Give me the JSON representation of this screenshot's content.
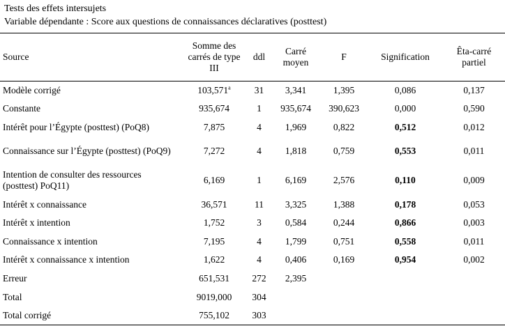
{
  "title": "Tests des effets intersujets",
  "subtitle": "Variable dépendante : Score aux questions de connaissances déclaratives (posttest)",
  "headers": {
    "source": "Source",
    "ss": "Somme des carrés de type III",
    "ddl": "ddl",
    "ms": "Carré moyen",
    "f": "F",
    "sig": "Signification",
    "eta": "Êta-carré partiel"
  },
  "rows": [
    {
      "source": "Modèle corrigé",
      "ss": "103,571",
      "ss_sup": "a",
      "ddl": "31",
      "ms": "3,341",
      "f": "1,395",
      "sig": "0,086",
      "eta": "0,137"
    },
    {
      "source": "Constante",
      "ss": "935,674",
      "ddl": "1",
      "ms": "935,674",
      "f": "390,623",
      "sig": "0,000",
      "eta": "0,590"
    },
    {
      "source": "Intérêt pour l’Égypte (posttest) (PoQ8)",
      "ss": "7,875",
      "ddl": "4",
      "ms": "1,969",
      "f": "0,822",
      "sig": "0,512",
      "eta": "0,012"
    },
    {
      "source": "Connaissance sur l’Égypte (posttest) (PoQ9)",
      "ss": "7,272",
      "ddl": "4",
      "ms": "1,818",
      "f": "0,759",
      "sig": "0,553",
      "eta": "0,011"
    },
    {
      "source": "Intention de consulter des ressources (posttest) PoQ11)",
      "ss": "6,169",
      "ddl": "1",
      "ms": "6,169",
      "f": "2,576",
      "sig": "0,110",
      "eta": "0,009"
    },
    {
      "source": "Intérêt x connaissance",
      "ss": "36,571",
      "ddl": "11",
      "ms": "3,325",
      "f": "1,388",
      "sig": "0,178",
      "eta": "0,053"
    },
    {
      "source": "Intérêt x intention",
      "ss": "1,752",
      "ddl": "3",
      "ms": "0,584",
      "f": "0,244",
      "sig": "0,866",
      "eta": "0,003"
    },
    {
      "source": "Connaissance x intention",
      "ss": "7,195",
      "ddl": "4",
      "ms": "1,799",
      "f": "0,751",
      "sig": "0,558",
      "eta": "0,011"
    },
    {
      "source": "Intérêt x connaissance x intention",
      "ss": "1,622",
      "ddl": "4",
      "ms": "0,406",
      "f": "0,169",
      "sig": "0,954",
      "eta": "0,002"
    },
    {
      "source": "Erreur",
      "ss": "651,531",
      "ddl": "272",
      "ms": "2,395",
      "f": "",
      "sig": "",
      "eta": ""
    },
    {
      "source": "Total",
      "ss": "9019,000",
      "ddl": "304",
      "ms": "",
      "f": "",
      "sig": "",
      "eta": ""
    },
    {
      "source": "Total corrigé",
      "ss": "755,102",
      "ddl": "303",
      "ms": "",
      "f": "",
      "sig": "",
      "eta": ""
    }
  ]
}
